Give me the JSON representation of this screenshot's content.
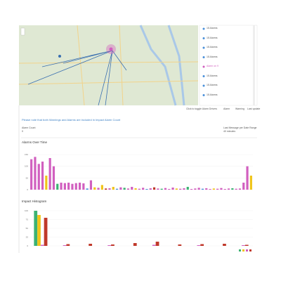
{
  "map": {
    "list": [
      "15 Alarms",
      "15 Alarms",
      "15 Alarms",
      "15 Alarms",
      "Alarm on 9",
      "15 Alarms",
      "15 Alarms",
      "15 Alarms"
    ],
    "toggle": "Click to toggle Alarm Drivers",
    "legend": [
      "Alarm",
      "Warning",
      "Last update"
    ]
  },
  "note": "Please note that both Warnings and Alarms are included in Impact Alarm Count",
  "alarm_count": {
    "label": "Alarm Count",
    "value": "0"
  },
  "last_message": {
    "label": "Last Message per Date Range",
    "value": "40 minutes"
  },
  "alarms_over_time": {
    "type": "bar",
    "title": "Alarms Over Time",
    "ylim": [
      0,
      150
    ],
    "yticks": [
      0,
      50,
      100,
      150
    ],
    "values": [
      130,
      140,
      110,
      120,
      60,
      135,
      100,
      25,
      30,
      28,
      30,
      25,
      28,
      30,
      27,
      5,
      40,
      10,
      8,
      20,
      5,
      6,
      12,
      4,
      10,
      8,
      5,
      12,
      6,
      4,
      8,
      3,
      6,
      10,
      5,
      4,
      7,
      3,
      9,
      5,
      4,
      6,
      12,
      3,
      5,
      8,
      4,
      6,
      3,
      5,
      4,
      7,
      3,
      5,
      6,
      4,
      5,
      30,
      100,
      60
    ],
    "colors": [
      "#d15fbf",
      "#d15fbf",
      "#d15fbf",
      "#d15fbf",
      "#f0c419",
      "#d15fbf",
      "#d15fbf",
      "#3bb273",
      "#d15fbf",
      "#d15fbf",
      "#d15fbf",
      "#d15fbf",
      "#d15fbf",
      "#d15fbf",
      "#d15fbf",
      "#4a90d9",
      "#d15fbf",
      "#f0c419",
      "#d15fbf",
      "#f0c419",
      "#c0392b",
      "#d15fbf",
      "#f0c419",
      "#4a90d9",
      "#d15fbf",
      "#3bb273",
      "#d15fbf",
      "#d15fbf",
      "#f0c419",
      "#d15fbf",
      "#d15fbf",
      "#4a90d9",
      "#d15fbf",
      "#c0392b",
      "#d15fbf",
      "#3bb273",
      "#d15fbf",
      "#d15fbf",
      "#d15fbf",
      "#f0c419",
      "#d15fbf",
      "#d15fbf",
      "#3bb273",
      "#d15fbf",
      "#d15fbf",
      "#d15fbf",
      "#4a90d9",
      "#d15fbf",
      "#d15fbf",
      "#f0c419",
      "#d15fbf",
      "#d15fbf",
      "#d15fbf",
      "#d15fbf",
      "#3bb273",
      "#d15fbf",
      "#d15fbf",
      "#d15fbf",
      "#d15fbf",
      "#f0c419"
    ]
  },
  "impact_histogram": {
    "type": "bar",
    "title": "Impact Histogram",
    "ylim": [
      0,
      100
    ],
    "yticks": [
      0,
      25,
      50,
      75,
      100
    ],
    "series": [
      {
        "color": "#3bb273",
        "values": [
          100,
          0,
          0,
          0,
          0,
          0,
          0,
          0,
          0,
          0
        ]
      },
      {
        "color": "#f0c419",
        "values": [
          88,
          0,
          0,
          0,
          0,
          0,
          0,
          0,
          0,
          0
        ]
      },
      {
        "color": "#d15fbf",
        "values": [
          3,
          2,
          0,
          2,
          0,
          3,
          0,
          2,
          0,
          2
        ]
      },
      {
        "color": "#c0392b",
        "values": [
          80,
          5,
          6,
          4,
          8,
          12,
          4,
          5,
          6,
          3
        ]
      }
    ]
  }
}
